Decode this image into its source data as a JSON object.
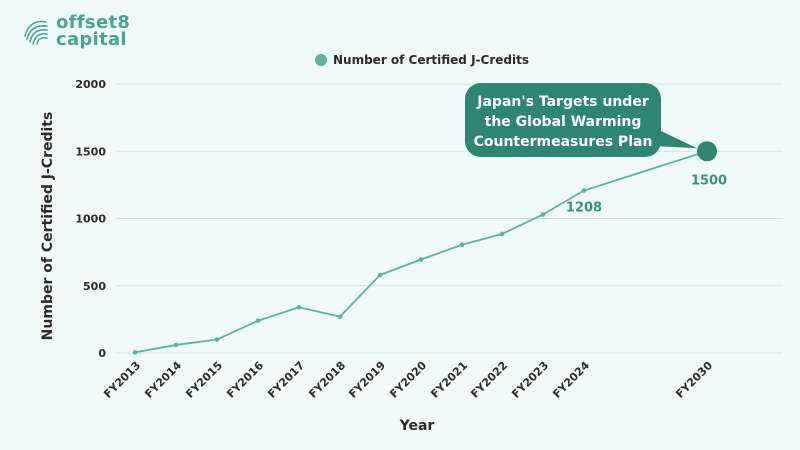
{
  "brand": {
    "logo_line1": "offset8",
    "logo_line2": "capital",
    "logo_icon": "fingerprint-wave-icon"
  },
  "colors": {
    "accent": "#4aa58e",
    "line": "#5bb39b",
    "callout_bg": "#2e8670",
    "label": "#3a9079",
    "grid": "#cfe3de"
  },
  "chart_data": {
    "type": "line",
    "title": "",
    "xlabel": "Year",
    "ylabel": "Number of Certified J-Credits",
    "ylim": [
      0,
      2000
    ],
    "yticks": [
      0,
      500,
      1000,
      1500,
      2000
    ],
    "grid": true,
    "legend": "top-center",
    "categories": [
      "FY2013",
      "FY2014",
      "FY2015",
      "FY2016",
      "FY2017",
      "FY2018",
      "FY2019",
      "FY2020",
      "FY2021",
      "FY2022",
      "FY2023",
      "FY2024",
      "FY2030"
    ],
    "series": [
      {
        "name": "Number of Certified J-Credits",
        "values": [
          5,
          60,
          100,
          240,
          340,
          270,
          580,
          695,
          805,
          885,
          1030,
          1208,
          1500
        ]
      }
    ],
    "data_labels": [
      {
        "category": "FY2024",
        "text": "1208"
      },
      {
        "category": "FY2030",
        "text": "1500"
      }
    ],
    "callout": {
      "lines": [
        "Japan's Targets under",
        "the Global Warming",
        "Countermeasures Plan"
      ],
      "points_to": "FY2030"
    }
  }
}
